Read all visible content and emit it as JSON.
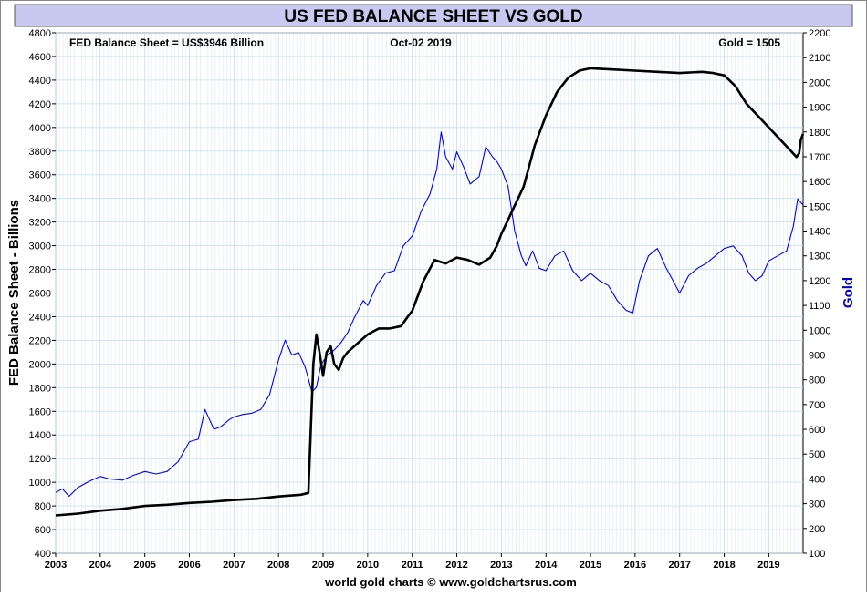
{
  "chart_data": {
    "type": "line",
    "title": "US FED BALANCE SHEET VS GOLD",
    "ylabel_left": "FED Balance Sheet - Billions",
    "ylabel_right": "Gold",
    "credit": "world gold charts © www.goldchartsrus.com",
    "annotation_left": "FED Balance Sheet = US$3946 Billion",
    "annotation_center": "Oct-02  2019",
    "annotation_right": "Gold = 1505",
    "x_ticks": [
      "2003",
      "2004",
      "2005",
      "2006",
      "2007",
      "2008",
      "2009",
      "2010",
      "2011",
      "2012",
      "2013",
      "2014",
      "2015",
      "2016",
      "2017",
      "2018",
      "2019"
    ],
    "xlim": [
      2003.0,
      2019.77
    ],
    "ylim_left": [
      400,
      4800
    ],
    "ylim_right": [
      100,
      2200
    ],
    "y_ticks_left": [
      400,
      600,
      800,
      1000,
      1200,
      1400,
      1600,
      1800,
      2000,
      2200,
      2400,
      2600,
      2800,
      3000,
      3200,
      3400,
      3600,
      3800,
      4000,
      4200,
      4400,
      4600,
      4800
    ],
    "y_ticks_right": [
      100,
      200,
      300,
      400,
      500,
      600,
      700,
      800,
      900,
      1000,
      1100,
      1200,
      1300,
      1400,
      1500,
      1600,
      1700,
      1800,
      1900,
      2000,
      2100,
      2200
    ],
    "grid": true,
    "colors": {
      "title_bar": "#c8c8f0",
      "fed_line": "#000000",
      "gold_line": "#0000ff",
      "grid": "#c8def0",
      "ylabel_right": "#0000cc"
    },
    "series": [
      {
        "name": "FED Balance Sheet",
        "axis": "left",
        "x": [
          2003.0,
          2003.5,
          2004.0,
          2004.5,
          2005.0,
          2005.5,
          2006.0,
          2006.5,
          2007.0,
          2007.5,
          2008.0,
          2008.5,
          2008.67,
          2008.72,
          2008.78,
          2008.85,
          2008.92,
          2009.0,
          2009.08,
          2009.17,
          2009.25,
          2009.35,
          2009.45,
          2009.55,
          2009.7,
          2009.85,
          2010.0,
          2010.25,
          2010.5,
          2010.75,
          2010.9,
          2011.0,
          2011.25,
          2011.5,
          2011.75,
          2012.0,
          2012.25,
          2012.5,
          2012.75,
          2012.9,
          2013.0,
          2013.25,
          2013.5,
          2013.75,
          2014.0,
          2014.25,
          2014.5,
          2014.75,
          2015.0,
          2015.5,
          2016.0,
          2016.5,
          2017.0,
          2017.5,
          2017.75,
          2018.0,
          2018.25,
          2018.5,
          2018.75,
          2019.0,
          2019.25,
          2019.5,
          2019.62,
          2019.68,
          2019.72,
          2019.77
        ],
        "y": [
          720,
          735,
          760,
          775,
          800,
          810,
          825,
          835,
          850,
          860,
          880,
          895,
          910,
          1400,
          2000,
          2250,
          2100,
          1900,
          2100,
          2150,
          2000,
          1950,
          2050,
          2100,
          2150,
          2200,
          2250,
          2300,
          2300,
          2320,
          2400,
          2450,
          2700,
          2880,
          2850,
          2900,
          2880,
          2840,
          2900,
          3000,
          3100,
          3300,
          3500,
          3850,
          4100,
          4300,
          4420,
          4480,
          4500,
          4490,
          4480,
          4470,
          4460,
          4470,
          4460,
          4440,
          4350,
          4200,
          4100,
          4000,
          3900,
          3800,
          3750,
          3780,
          3900,
          3946
        ]
      },
      {
        "name": "Gold",
        "axis": "right",
        "x": [
          2003.0,
          2003.15,
          2003.3,
          2003.5,
          2003.75,
          2004.0,
          2004.2,
          2004.5,
          2004.75,
          2005.0,
          2005.25,
          2005.5,
          2005.75,
          2006.0,
          2006.2,
          2006.35,
          2006.45,
          2006.55,
          2006.7,
          2006.9,
          2007.0,
          2007.2,
          2007.4,
          2007.6,
          2007.8,
          2008.0,
          2008.15,
          2008.3,
          2008.45,
          2008.6,
          2008.75,
          2008.85,
          2008.95,
          2009.1,
          2009.25,
          2009.4,
          2009.55,
          2009.7,
          2009.9,
          2010.0,
          2010.2,
          2010.4,
          2010.6,
          2010.8,
          2011.0,
          2011.2,
          2011.4,
          2011.55,
          2011.65,
          2011.75,
          2011.9,
          2012.0,
          2012.15,
          2012.3,
          2012.5,
          2012.65,
          2012.8,
          2012.9,
          2013.0,
          2013.15,
          2013.3,
          2013.45,
          2013.55,
          2013.7,
          2013.85,
          2014.0,
          2014.2,
          2014.4,
          2014.6,
          2014.8,
          2015.0,
          2015.2,
          2015.4,
          2015.6,
          2015.8,
          2015.95,
          2016.1,
          2016.3,
          2016.5,
          2016.7,
          2016.85,
          2017.0,
          2017.2,
          2017.4,
          2017.6,
          2017.8,
          2018.0,
          2018.2,
          2018.4,
          2018.55,
          2018.7,
          2018.85,
          2019.0,
          2019.2,
          2019.4,
          2019.55,
          2019.65,
          2019.77
        ],
        "y": [
          345,
          360,
          330,
          365,
          390,
          410,
          400,
          395,
          415,
          430,
          420,
          430,
          470,
          550,
          560,
          680,
          640,
          600,
          610,
          640,
          650,
          660,
          665,
          680,
          740,
          880,
          960,
          900,
          910,
          850,
          750,
          770,
          860,
          900,
          920,
          950,
          990,
          1050,
          1120,
          1100,
          1180,
          1230,
          1240,
          1340,
          1380,
          1480,
          1550,
          1650,
          1800,
          1700,
          1650,
          1720,
          1660,
          1590,
          1620,
          1740,
          1700,
          1680,
          1650,
          1580,
          1400,
          1300,
          1260,
          1320,
          1250,
          1240,
          1300,
          1320,
          1240,
          1200,
          1230,
          1200,
          1180,
          1120,
          1080,
          1070,
          1200,
          1300,
          1330,
          1250,
          1200,
          1150,
          1220,
          1250,
          1270,
          1300,
          1330,
          1340,
          1300,
          1230,
          1200,
          1220,
          1280,
          1300,
          1320,
          1420,
          1530,
          1505
        ]
      }
    ]
  }
}
